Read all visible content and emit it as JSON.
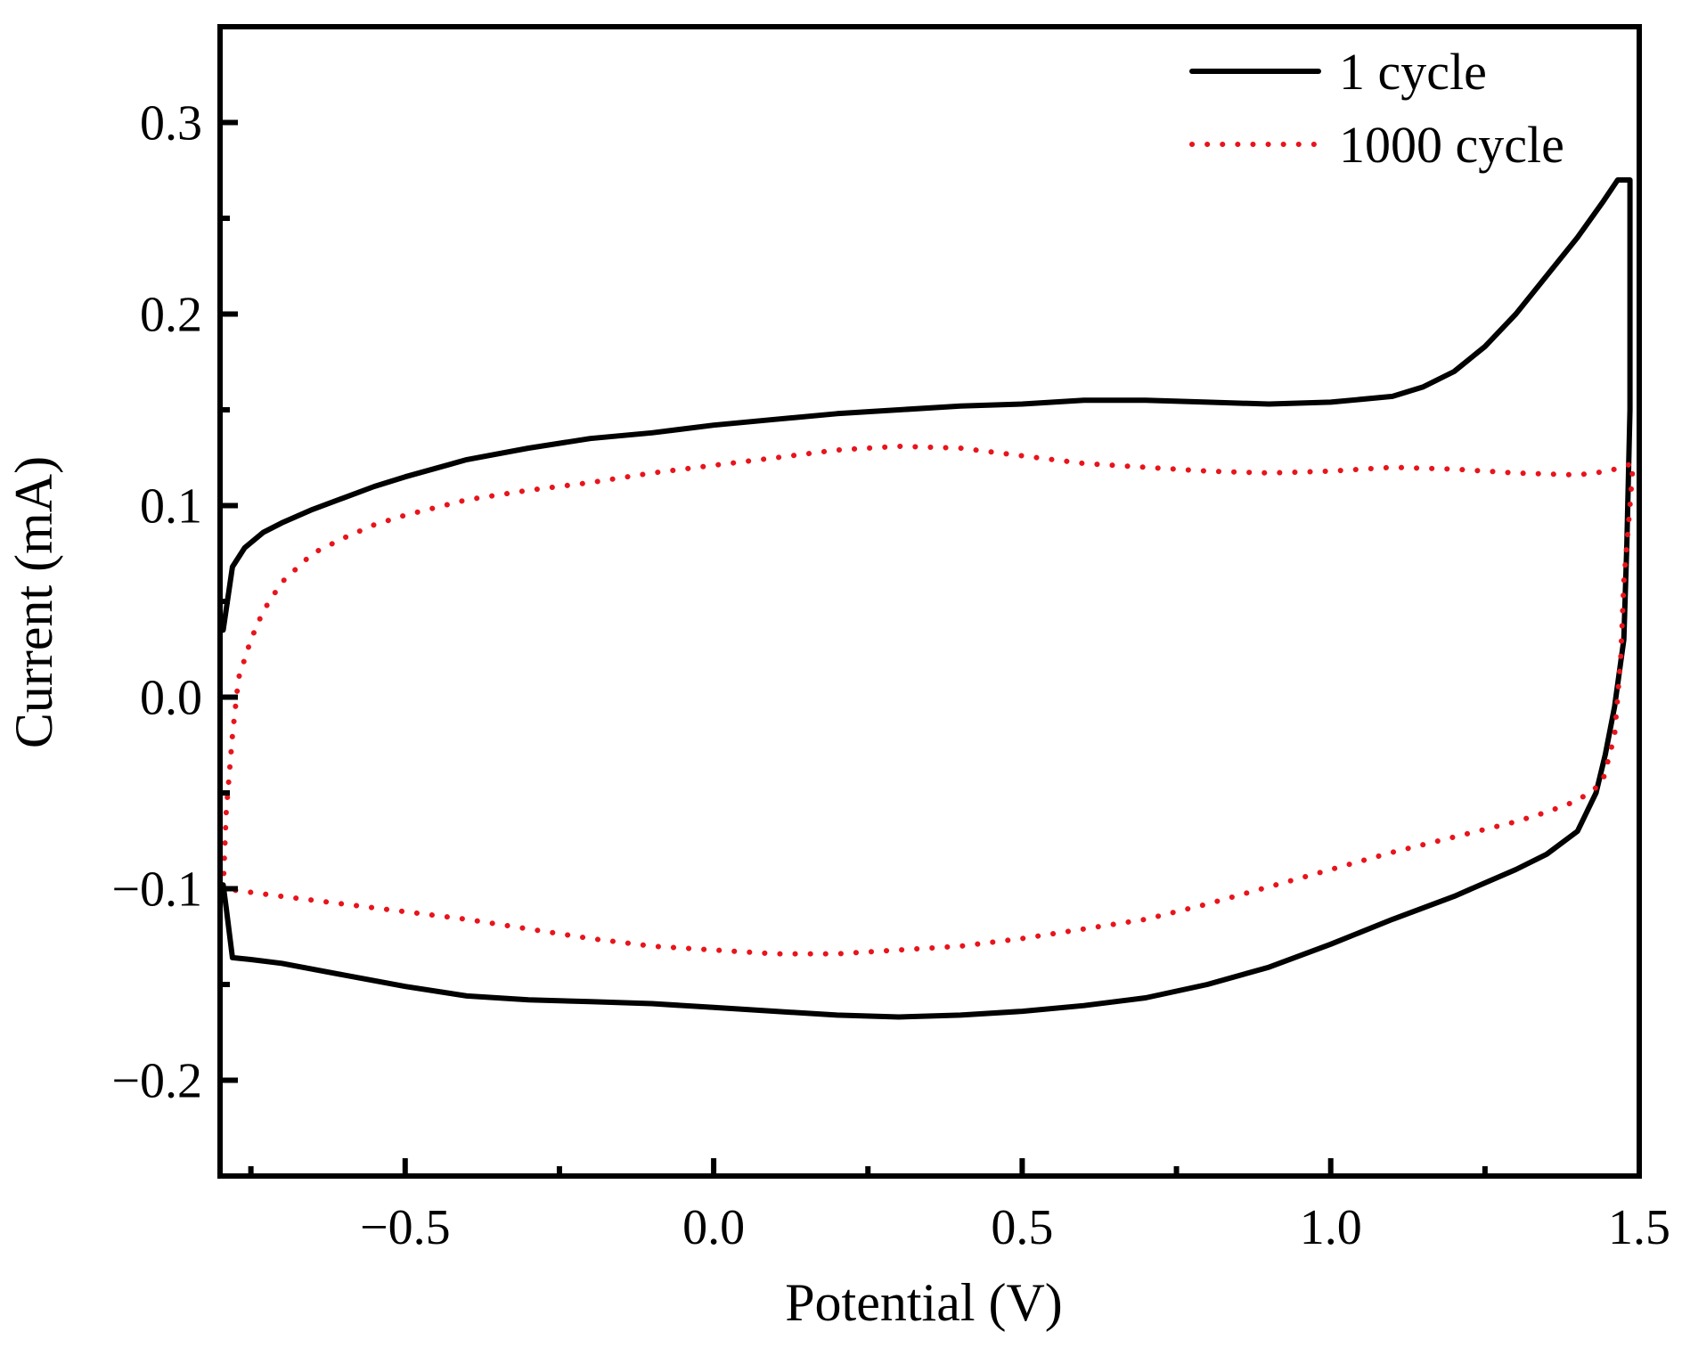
{
  "chart_data": {
    "type": "line",
    "title": "",
    "xlabel": "Potential (V)",
    "ylabel": "Current (mA)",
    "xlim": [
      -0.8,
      1.5
    ],
    "ylim": [
      -0.25,
      0.35
    ],
    "x_ticks": [
      {
        "value": -0.5,
        "label": "−0.5"
      },
      {
        "value": 0.0,
        "label": "0.0"
      },
      {
        "value": 0.5,
        "label": "0.5"
      },
      {
        "value": 1.0,
        "label": "1.0"
      },
      {
        "value": 1.5,
        "label": "1.5"
      }
    ],
    "x_minor_ticks": [
      -0.75,
      -0.25,
      0.25,
      0.75,
      1.25
    ],
    "y_ticks": [
      {
        "value": -0.2,
        "label": "−0.2"
      },
      {
        "value": -0.1,
        "label": "−0.1"
      },
      {
        "value": 0.0,
        "label": "0.0"
      },
      {
        "value": 0.1,
        "label": "0.1"
      },
      {
        "value": 0.2,
        "label": "0.2"
      },
      {
        "value": 0.3,
        "label": "0.3"
      }
    ],
    "y_minor_ticks": [
      -0.15,
      -0.05,
      0.05,
      0.15,
      0.25
    ],
    "grid": false,
    "legend_position": "top-right",
    "series": [
      {
        "name": "1 cycle",
        "style": "solid",
        "color": "#000000",
        "points": [
          [
            -0.795,
            0.035
          ],
          [
            -0.78,
            0.068
          ],
          [
            -0.76,
            0.078
          ],
          [
            -0.73,
            0.086
          ],
          [
            -0.7,
            0.091
          ],
          [
            -0.65,
            0.098
          ],
          [
            -0.6,
            0.104
          ],
          [
            -0.55,
            0.11
          ],
          [
            -0.5,
            0.115
          ],
          [
            -0.4,
            0.124
          ],
          [
            -0.3,
            0.13
          ],
          [
            -0.2,
            0.135
          ],
          [
            -0.1,
            0.138
          ],
          [
            0.0,
            0.142
          ],
          [
            0.1,
            0.145
          ],
          [
            0.2,
            0.148
          ],
          [
            0.3,
            0.15
          ],
          [
            0.4,
            0.152
          ],
          [
            0.5,
            0.153
          ],
          [
            0.6,
            0.155
          ],
          [
            0.7,
            0.155
          ],
          [
            0.8,
            0.154
          ],
          [
            0.9,
            0.153
          ],
          [
            1.0,
            0.154
          ],
          [
            1.1,
            0.157
          ],
          [
            1.15,
            0.162
          ],
          [
            1.2,
            0.17
          ],
          [
            1.25,
            0.183
          ],
          [
            1.3,
            0.2
          ],
          [
            1.35,
            0.22
          ],
          [
            1.4,
            0.24
          ],
          [
            1.44,
            0.258
          ],
          [
            1.465,
            0.27
          ],
          [
            1.485,
            0.27
          ],
          [
            1.485,
            0.15
          ],
          [
            1.48,
            0.08
          ],
          [
            1.475,
            0.03
          ],
          [
            1.46,
            -0.005
          ],
          [
            1.445,
            -0.03
          ],
          [
            1.43,
            -0.05
          ],
          [
            1.4,
            -0.07
          ],
          [
            1.35,
            -0.082
          ],
          [
            1.3,
            -0.09
          ],
          [
            1.25,
            -0.097
          ],
          [
            1.2,
            -0.104
          ],
          [
            1.1,
            -0.116
          ],
          [
            1.0,
            -0.129
          ],
          [
            0.9,
            -0.141
          ],
          [
            0.8,
            -0.15
          ],
          [
            0.7,
            -0.157
          ],
          [
            0.6,
            -0.161
          ],
          [
            0.5,
            -0.164
          ],
          [
            0.4,
            -0.166
          ],
          [
            0.3,
            -0.167
          ],
          [
            0.2,
            -0.166
          ],
          [
            0.1,
            -0.164
          ],
          [
            0.0,
            -0.162
          ],
          [
            -0.1,
            -0.16
          ],
          [
            -0.2,
            -0.159
          ],
          [
            -0.3,
            -0.158
          ],
          [
            -0.4,
            -0.156
          ],
          [
            -0.5,
            -0.151
          ],
          [
            -0.6,
            -0.145
          ],
          [
            -0.7,
            -0.139
          ],
          [
            -0.75,
            -0.137
          ],
          [
            -0.78,
            -0.136
          ],
          [
            -0.79,
            -0.11
          ],
          [
            -0.795,
            -0.098
          ]
        ]
      },
      {
        "name": "1000 cycle",
        "style": "dotted",
        "color": "#e8141c",
        "points": [
          [
            -0.795,
            -0.1
          ],
          [
            -0.79,
            -0.06
          ],
          [
            -0.78,
            -0.02
          ],
          [
            -0.77,
            0.01
          ],
          [
            -0.75,
            0.03
          ],
          [
            -0.73,
            0.045
          ],
          [
            -0.7,
            0.06
          ],
          [
            -0.65,
            0.075
          ],
          [
            -0.6,
            0.083
          ],
          [
            -0.55,
            0.09
          ],
          [
            -0.5,
            0.095
          ],
          [
            -0.4,
            0.103
          ],
          [
            -0.3,
            0.108
          ],
          [
            -0.2,
            0.112
          ],
          [
            -0.1,
            0.117
          ],
          [
            0.0,
            0.121
          ],
          [
            0.1,
            0.125
          ],
          [
            0.2,
            0.129
          ],
          [
            0.3,
            0.131
          ],
          [
            0.4,
            0.13
          ],
          [
            0.5,
            0.126
          ],
          [
            0.6,
            0.122
          ],
          [
            0.7,
            0.12
          ],
          [
            0.8,
            0.118
          ],
          [
            0.9,
            0.117
          ],
          [
            1.0,
            0.118
          ],
          [
            1.1,
            0.12
          ],
          [
            1.2,
            0.119
          ],
          [
            1.3,
            0.117
          ],
          [
            1.4,
            0.116
          ],
          [
            1.45,
            0.118
          ],
          [
            1.49,
            0.122
          ],
          [
            1.485,
            0.1
          ],
          [
            1.475,
            0.06
          ],
          [
            1.47,
            0.02
          ],
          [
            1.46,
            -0.02
          ],
          [
            1.44,
            -0.045
          ],
          [
            1.4,
            -0.054
          ],
          [
            1.35,
            -0.06
          ],
          [
            1.3,
            -0.065
          ],
          [
            1.2,
            -0.073
          ],
          [
            1.1,
            -0.081
          ],
          [
            1.0,
            -0.09
          ],
          [
            0.9,
            -0.099
          ],
          [
            0.8,
            -0.108
          ],
          [
            0.7,
            -0.116
          ],
          [
            0.6,
            -0.121
          ],
          [
            0.5,
            -0.126
          ],
          [
            0.4,
            -0.13
          ],
          [
            0.3,
            -0.132
          ],
          [
            0.2,
            -0.134
          ],
          [
            0.1,
            -0.134
          ],
          [
            0.0,
            -0.132
          ],
          [
            -0.1,
            -0.13
          ],
          [
            -0.2,
            -0.126
          ],
          [
            -0.3,
            -0.121
          ],
          [
            -0.4,
            -0.116
          ],
          [
            -0.5,
            -0.112
          ],
          [
            -0.6,
            -0.108
          ],
          [
            -0.7,
            -0.104
          ],
          [
            -0.795,
            -0.1
          ]
        ]
      }
    ]
  }
}
